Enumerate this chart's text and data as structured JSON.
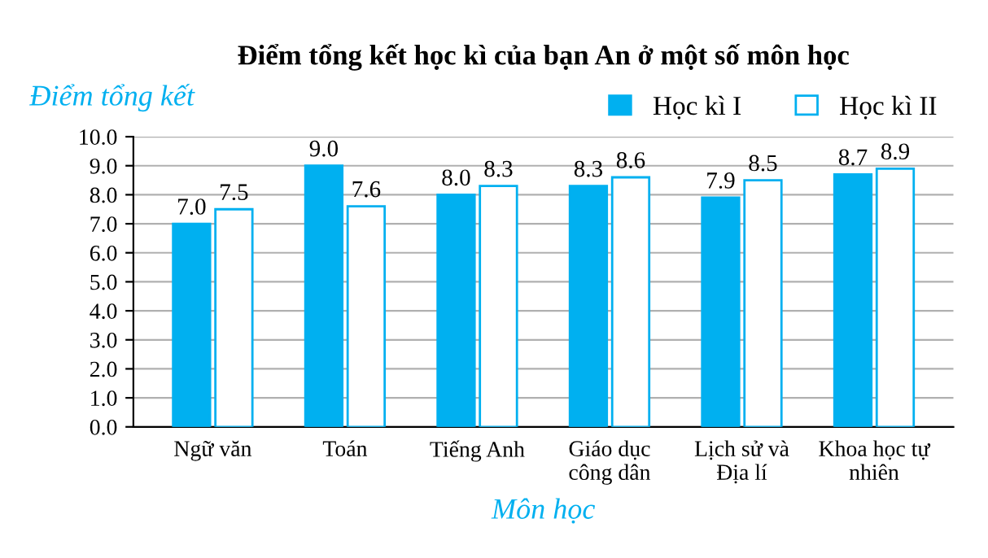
{
  "chart_data": {
    "type": "bar",
    "title": "Điểm tổng kết học kì của bạn An ở một số môn học",
    "xlabel": "Môn học",
    "ylabel": "Điểm tổng kết",
    "categories": [
      "Ngữ văn",
      "Toán",
      "Tiếng Anh",
      "Giáo dục\ncông dân",
      "Lịch sử và\nĐịa lí",
      "Khoa học tự\nnhiên"
    ],
    "series": [
      {
        "name": "Học kì I",
        "color": "#00b0f0",
        "values": [
          7.0,
          9.0,
          8.0,
          8.3,
          7.9,
          8.7
        ],
        "value_labels": [
          "7.0",
          "9.0",
          "8.0",
          "8.3",
          "7.9",
          "8.7"
        ]
      },
      {
        "name": "Học kì II",
        "color": "#ffffff",
        "values": [
          7.5,
          7.6,
          8.3,
          8.6,
          8.5,
          8.9
        ],
        "value_labels": [
          "7.5",
          "7.6",
          "8.3",
          "8.6",
          "8.5",
          "8.9"
        ]
      }
    ],
    "ylim": [
      0,
      10
    ],
    "yticks": [
      {
        "value": 0,
        "label": "0.0"
      },
      {
        "value": 1,
        "label": "1.0"
      },
      {
        "value": 2,
        "label": "2.0"
      },
      {
        "value": 3,
        "label": "3.0"
      },
      {
        "value": 4,
        "label": "4.0"
      },
      {
        "value": 5,
        "label": "5.0"
      },
      {
        "value": 6,
        "label": "6.0"
      },
      {
        "value": 7,
        "label": "7.0"
      },
      {
        "value": 8,
        "label": "8.0"
      },
      {
        "value": 9,
        "label": "9.0"
      },
      {
        "value": 10,
        "label": "10.0"
      }
    ],
    "grid": "y",
    "legend": "top right"
  }
}
